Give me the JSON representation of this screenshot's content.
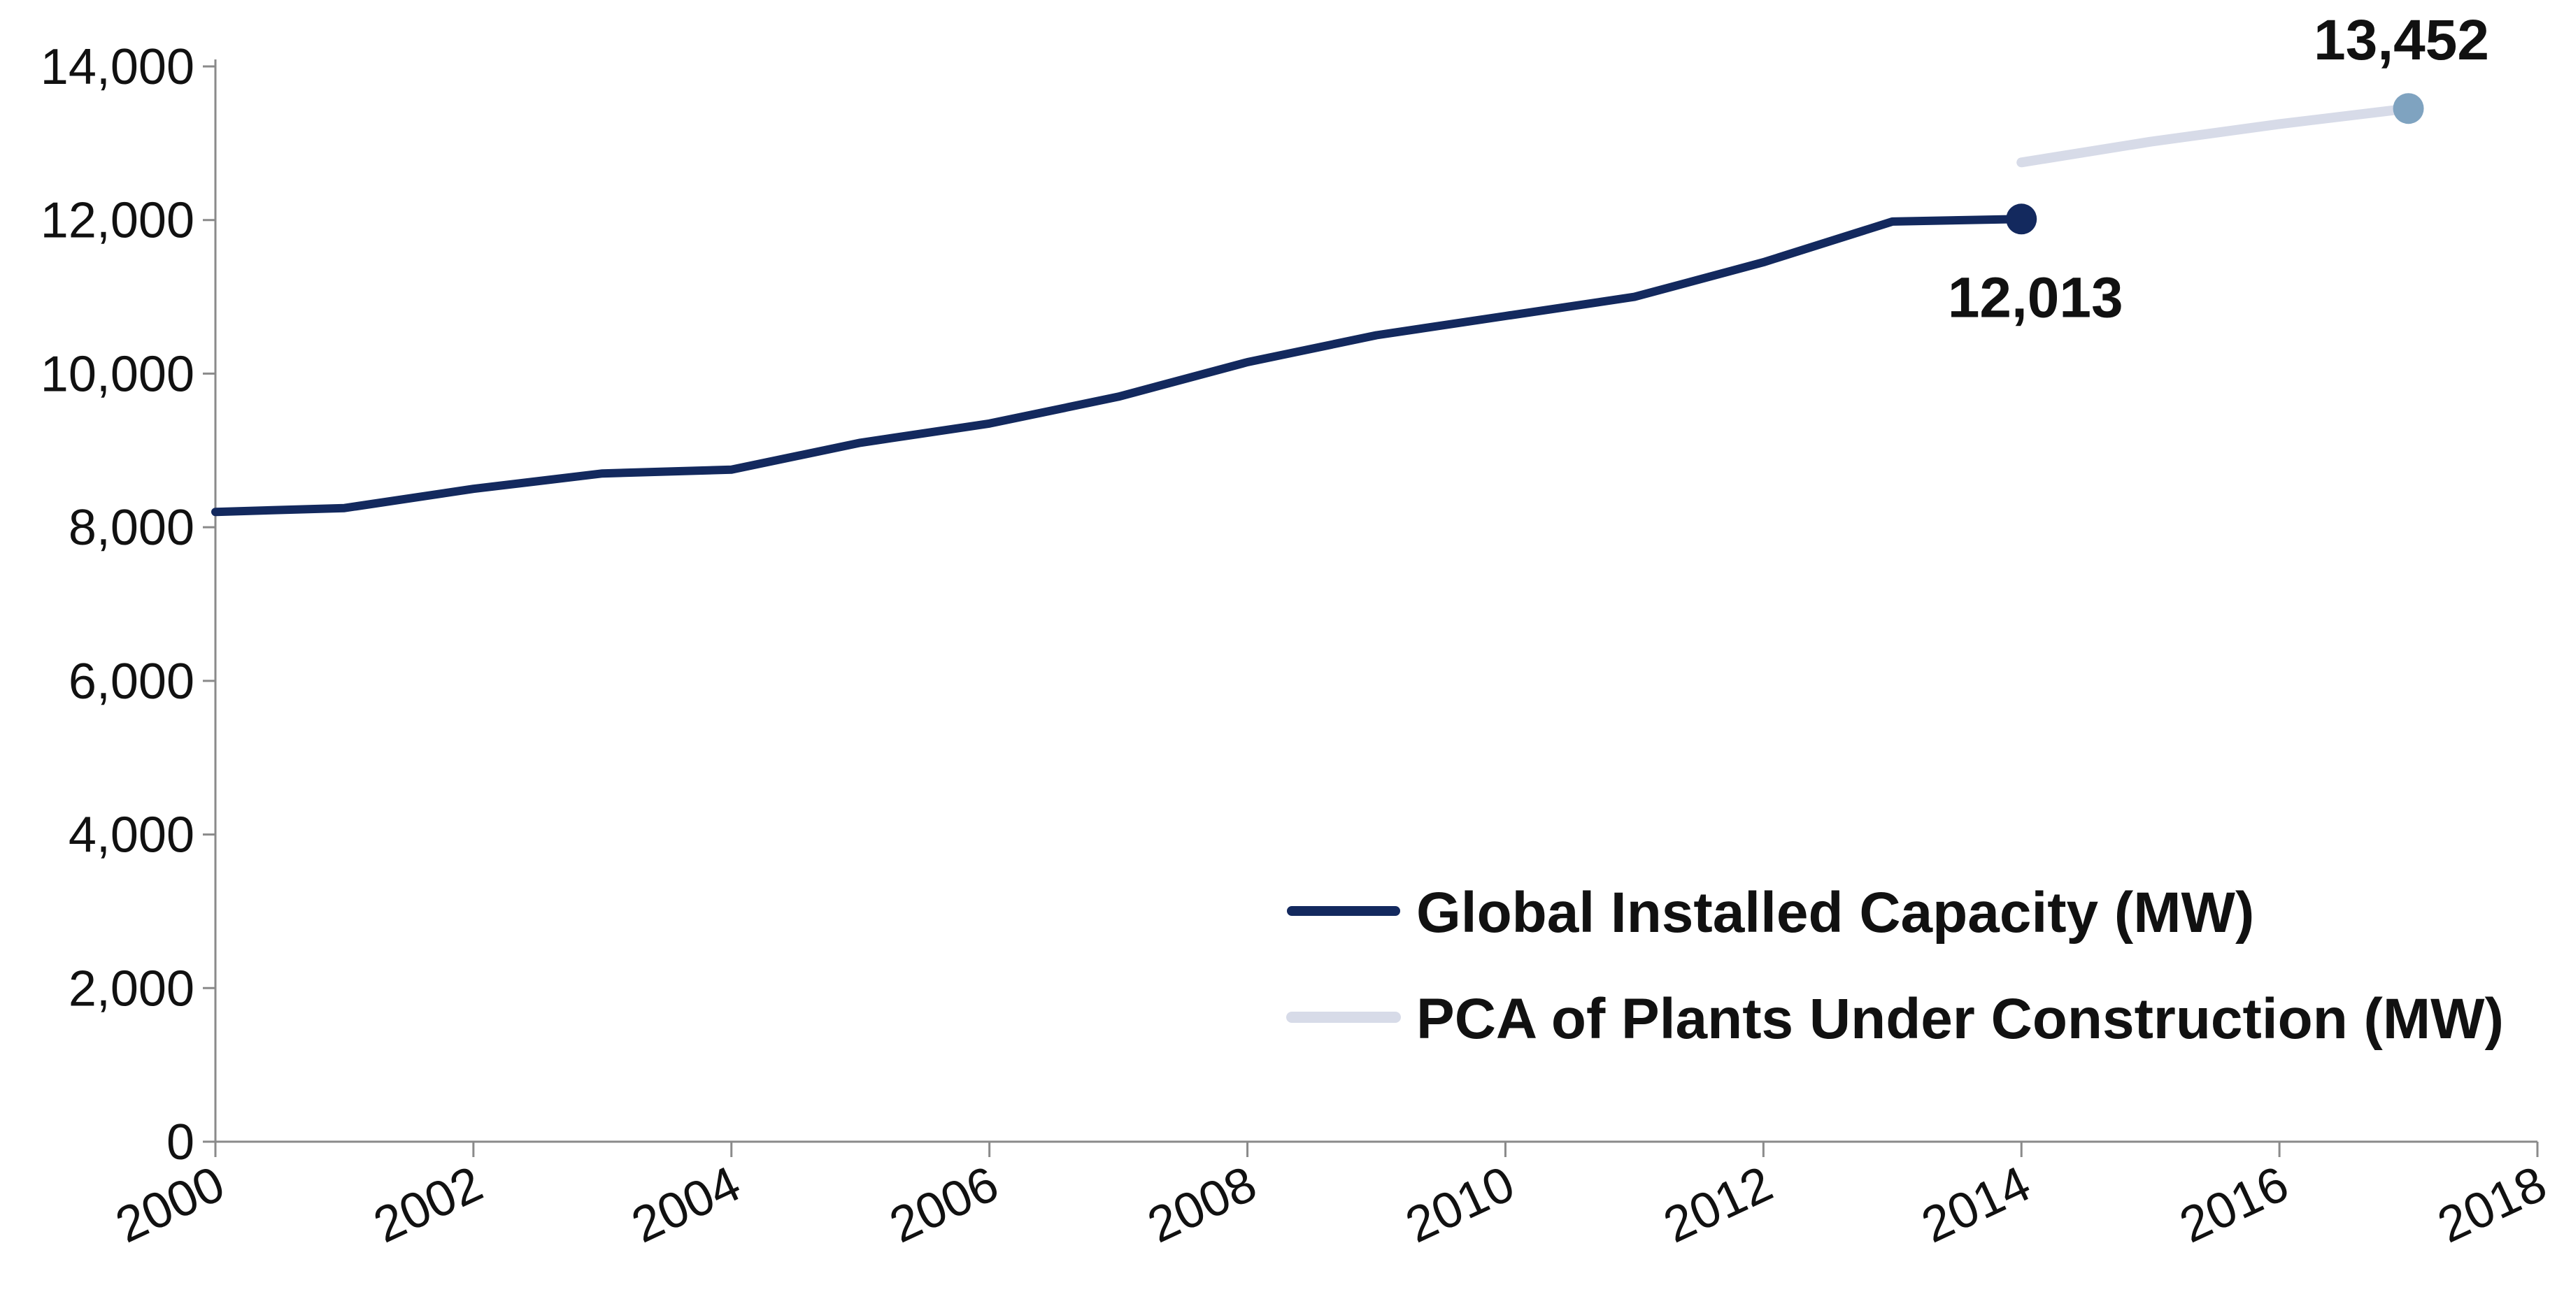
{
  "chart_data": {
    "type": "line",
    "title": "",
    "xlabel": "",
    "ylabel": "",
    "xlim": [
      2000,
      2018
    ],
    "ylim": [
      0,
      14000
    ],
    "x_ticks": [
      "2000",
      "2002",
      "2004",
      "2006",
      "2008",
      "2010",
      "2012",
      "2014",
      "2016",
      "2018"
    ],
    "y_ticks": [
      "0",
      "2,000",
      "4,000",
      "6,000",
      "8,000",
      "10,000",
      "12,000",
      "14,000"
    ],
    "grid": false,
    "legend_position": "bottom-right",
    "series": [
      {
        "name": "Global Installed Capacity (MW)",
        "color": "#13295e",
        "x": [
          2000,
          2001,
          2002,
          2003,
          2004,
          2005,
          2006,
          2007,
          2008,
          2009,
          2010,
          2011,
          2012,
          2013,
          2014
        ],
        "values": [
          8200,
          8250,
          8500,
          8700,
          8750,
          9100,
          9350,
          9700,
          10150,
          10500,
          10750,
          11000,
          11450,
          11980,
          12013
        ],
        "end_label": "12,013"
      },
      {
        "name": "PCA of Plants Under Construction (MW)",
        "color": "#d7dbe8",
        "marker_color": "#7fa3c0",
        "x": [
          2014,
          2015,
          2016,
          2017
        ],
        "values": [
          12750,
          13020,
          13250,
          13452
        ],
        "end_label": "13,452"
      }
    ]
  }
}
